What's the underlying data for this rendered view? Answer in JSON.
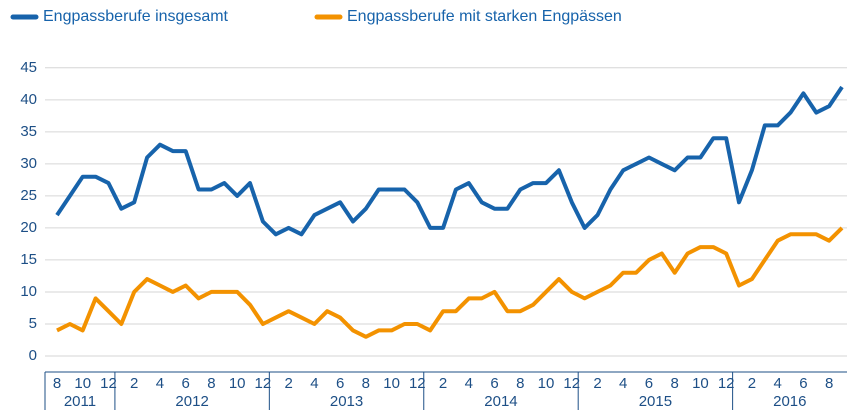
{
  "chart_data": {
    "type": "line",
    "categories": [
      "8",
      null,
      "10",
      null,
      "12",
      null,
      "2",
      null,
      "4",
      null,
      "6",
      null,
      "8",
      null,
      "10",
      null,
      "12",
      null,
      "2",
      null,
      "4",
      null,
      "6",
      null,
      "8",
      null,
      "10",
      null,
      "12",
      null,
      "2",
      null,
      "4",
      null,
      "6",
      null,
      "8",
      null,
      "10",
      null,
      "12",
      null,
      "2",
      null,
      "4",
      null,
      "6",
      null,
      "8",
      null,
      "10",
      null,
      "12",
      null,
      "2",
      null,
      "4",
      null,
      "6",
      null,
      "8",
      null
    ],
    "years": [
      "2011",
      "2012",
      "2013",
      "2014",
      "2015",
      "2016"
    ],
    "series": [
      {
        "name": "Engpassberufe insgesamt",
        "color": "#1763ab",
        "values": [
          22,
          25,
          28,
          28,
          27,
          23,
          24,
          31,
          33,
          32,
          32,
          26,
          26,
          27,
          25,
          27,
          21,
          19,
          20,
          19,
          22,
          23,
          24,
          21,
          23,
          26,
          26,
          26,
          24,
          20,
          20,
          26,
          27,
          24,
          23,
          23,
          26,
          27,
          27,
          29,
          24,
          20,
          22,
          26,
          29,
          30,
          31,
          30,
          29,
          31,
          31,
          34,
          34,
          24,
          29,
          36,
          36,
          38,
          41,
          38,
          39,
          42
        ]
      },
      {
        "name": "Engpassberufe mit starken Engpässen",
        "color": "#f39200",
        "values": [
          4,
          5,
          4,
          9,
          7,
          5,
          10,
          12,
          11,
          10,
          11,
          9,
          10,
          10,
          10,
          8,
          5,
          6,
          7,
          6,
          5,
          7,
          6,
          4,
          3,
          4,
          4,
          5,
          5,
          4,
          7,
          7,
          9,
          9,
          10,
          7,
          7,
          8,
          10,
          12,
          10,
          9,
          10,
          11,
          13,
          13,
          15,
          16,
          13,
          16,
          17,
          17,
          16,
          11,
          12,
          15,
          18,
          19,
          19,
          19,
          18,
          20
        ]
      }
    ],
    "ylim": [
      -2.5,
      47
    ],
    "yticks": [
      0,
      5,
      10,
      15,
      20,
      25,
      30,
      35,
      40,
      45
    ],
    "grid": true
  }
}
